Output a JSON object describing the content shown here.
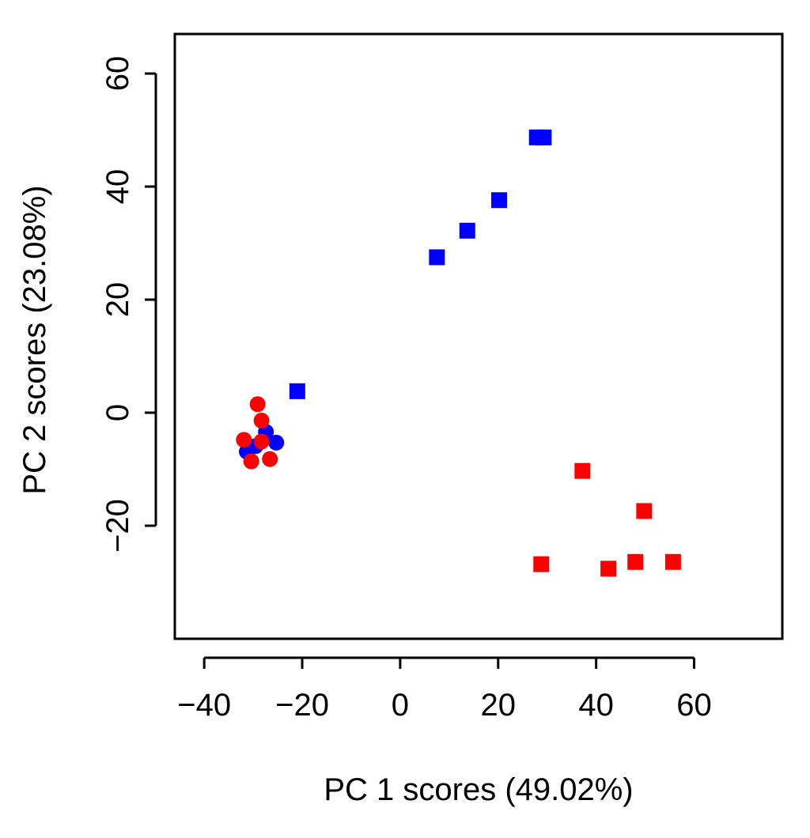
{
  "chart_data": {
    "type": "scatter",
    "title": "",
    "xlabel": "PC 1 scores (49.02%)",
    "ylabel": "PC 2 scores (23.08%)",
    "xlim": [
      -46,
      78
    ],
    "ylim": [
      -40,
      67
    ],
    "xticks": [
      -40,
      -20,
      0,
      20,
      40,
      60
    ],
    "yticks": [
      -20,
      0,
      20,
      40,
      60
    ],
    "xtick_labels": [
      "−40",
      "−20",
      "0",
      "20",
      "40",
      "60"
    ],
    "ytick_labels": [
      "−20",
      "0",
      "20",
      "40",
      "60"
    ],
    "grid": false,
    "legend": "none",
    "series": [
      {
        "marker": "square",
        "color": "#0000ff",
        "points": [
          {
            "x": -21,
            "y": 3.8
          },
          {
            "x": 7.5,
            "y": 27.5
          },
          {
            "x": 13.7,
            "y": 32.2
          },
          {
            "x": 20.2,
            "y": 37.6
          },
          {
            "x": 27.9,
            "y": 48.7
          },
          {
            "x": 29.3,
            "y": 48.7
          }
        ]
      },
      {
        "marker": "square",
        "color": "#ff0000",
        "points": [
          {
            "x": 28.8,
            "y": -26.8
          },
          {
            "x": 37.2,
            "y": -10.3
          },
          {
            "x": 42.5,
            "y": -27.6
          },
          {
            "x": 48.0,
            "y": -26.4
          },
          {
            "x": 49.8,
            "y": -17.4
          },
          {
            "x": 55.7,
            "y": -26.4
          }
        ]
      },
      {
        "marker": "circle",
        "color": "#0000ff",
        "points": [
          {
            "x": -27.4,
            "y": -3.4
          },
          {
            "x": -25.3,
            "y": -5.3
          },
          {
            "x": -29.5,
            "y": -5.9
          },
          {
            "x": -31.3,
            "y": -6.9
          }
        ]
      },
      {
        "marker": "circle",
        "color": "#ff0000",
        "points": [
          {
            "x": -29.1,
            "y": 1.5
          },
          {
            "x": -28.3,
            "y": -1.4
          },
          {
            "x": -31.9,
            "y": -4.8
          },
          {
            "x": -28.3,
            "y": -5.1
          },
          {
            "x": -30.4,
            "y": -8.6
          },
          {
            "x": -26.6,
            "y": -8.2
          }
        ]
      }
    ]
  }
}
